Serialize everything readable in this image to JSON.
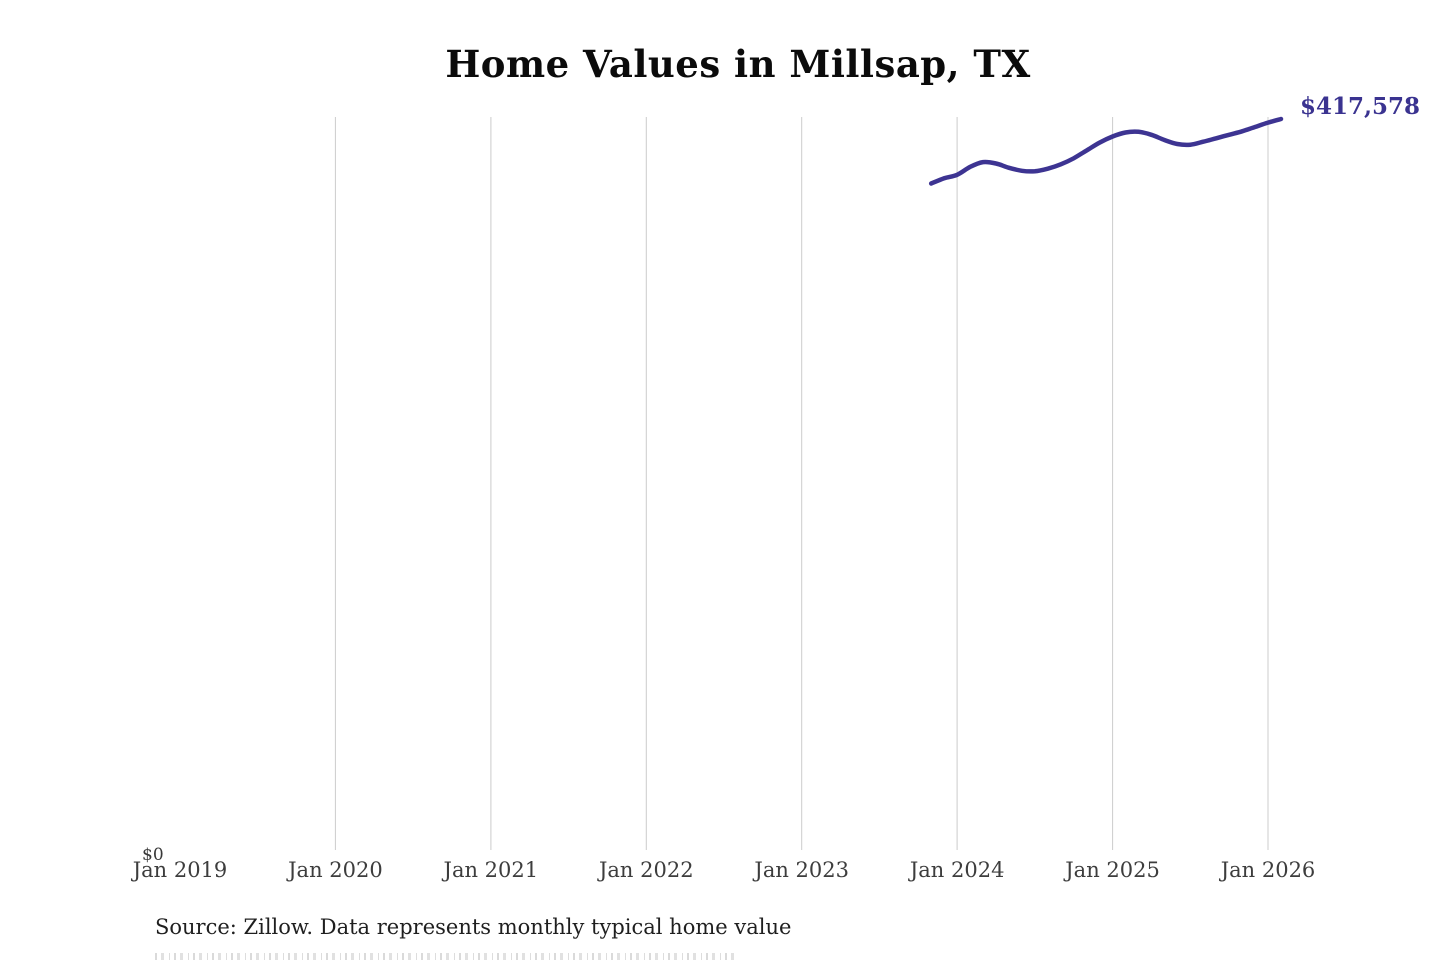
{
  "page": {
    "background": "#ffffff"
  },
  "chart_data": {
    "type": "line",
    "title": "Home Values in Millsap, TX",
    "source_note": "Source: Zillow. Data represents monthly typical home value",
    "end_label": "$417,578",
    "y_zero_label": "$0",
    "grid": "vertical",
    "legend": "none",
    "line_color": "#3d3492",
    "end_label_color": "#3a3390",
    "gridline_color": "#cccccc",
    "x_axis": {
      "tick_labels": [
        "Jan 2019",
        "Jan 2020",
        "Jan 2021",
        "Jan 2022",
        "Jan 2023",
        "Jan 2024",
        "Jan 2025",
        "Jan 2026"
      ],
      "tick_months": [
        "2019-01",
        "2020-01",
        "2021-01",
        "2022-01",
        "2023-01",
        "2024-01",
        "2025-01",
        "2026-01"
      ],
      "gridlines_at": [
        "2020-01",
        "2021-01",
        "2022-01",
        "2023-01",
        "2024-01",
        "2025-01",
        "2026-01"
      ]
    },
    "y_axis": {
      "range": [
        0,
        420000
      ],
      "tick_labels": [
        "$0"
      ]
    },
    "series": [
      {
        "name": "Monthly typical home value",
        "x": [
          "2023-11",
          "2023-12",
          "2024-01",
          "2024-02",
          "2024-03",
          "2024-04",
          "2024-05",
          "2024-06",
          "2024-07",
          "2024-08",
          "2024-09",
          "2024-10",
          "2024-11",
          "2024-12",
          "2025-01",
          "2025-02",
          "2025-03",
          "2025-04",
          "2025-05",
          "2025-06",
          "2025-07",
          "2025-08",
          "2025-09",
          "2025-10",
          "2025-11",
          "2025-12",
          "2026-01",
          "2026-02"
        ],
        "values": [
          380500,
          383500,
          385500,
          390000,
          392800,
          392000,
          389500,
          387800,
          387500,
          389000,
          391500,
          395000,
          399500,
          404000,
          407500,
          409800,
          410200,
          408500,
          405500,
          403200,
          402800,
          404500,
          406500,
          408500,
          410500,
          413000,
          415500,
          417578
        ]
      }
    ]
  }
}
